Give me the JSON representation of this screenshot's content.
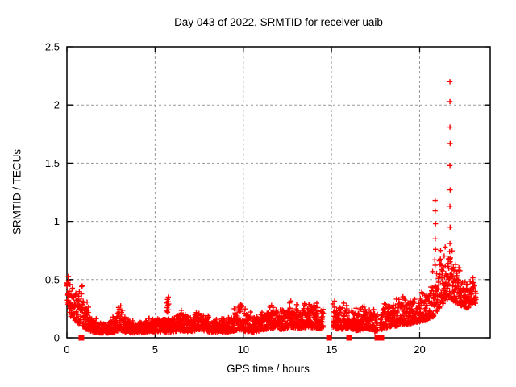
{
  "title": "Day 043 of 2022, SRMTID for receiver uaib",
  "axes": {
    "xlabel": "GPS time / hours",
    "ylabel": "SRMTID / TECUs"
  },
  "colors": {
    "marker": "#ff0000",
    "axis": "#000000",
    "grid": "#9a9a9a",
    "background": "#ffffff"
  },
  "chart_data": {
    "type": "scatter",
    "title": "Day 043 of 2022, SRMTID for receiver uaib",
    "xlabel": "GPS time / hours",
    "ylabel": "SRMTID / TECUs",
    "xlim": [
      0,
      24
    ],
    "ylim": [
      0,
      2.5
    ],
    "xticks": [
      0,
      5,
      10,
      15,
      20
    ],
    "yticks": [
      0,
      0.5,
      1,
      1.5,
      2,
      2.5
    ],
    "grid": true,
    "legend": "none",
    "marker": "+",
    "marker_color": "#ff0000",
    "series_name": "SRMTID",
    "points_per_hour": 110,
    "band_envelope": [
      [
        0.0,
        0.26,
        0.57
      ],
      [
        0.2,
        0.18,
        0.46
      ],
      [
        0.5,
        0.13,
        0.38
      ],
      [
        0.75,
        0.12,
        0.45
      ],
      [
        1.0,
        0.08,
        0.3
      ],
      [
        1.3,
        0.06,
        0.2
      ],
      [
        1.7,
        0.04,
        0.13
      ],
      [
        2.3,
        0.04,
        0.12
      ],
      [
        2.8,
        0.05,
        0.17
      ],
      [
        3.0,
        0.07,
        0.32
      ],
      [
        3.2,
        0.05,
        0.18
      ],
      [
        3.6,
        0.04,
        0.13
      ],
      [
        4.2,
        0.04,
        0.12
      ],
      [
        4.8,
        0.05,
        0.15
      ],
      [
        5.3,
        0.05,
        0.16
      ],
      [
        5.9,
        0.05,
        0.16
      ],
      [
        6.5,
        0.06,
        0.21
      ],
      [
        7.0,
        0.05,
        0.16
      ],
      [
        7.5,
        0.07,
        0.23
      ],
      [
        8.0,
        0.05,
        0.16
      ],
      [
        8.7,
        0.04,
        0.14
      ],
      [
        9.3,
        0.05,
        0.18
      ],
      [
        9.85,
        0.07,
        0.3
      ],
      [
        10.2,
        0.05,
        0.2
      ],
      [
        10.7,
        0.05,
        0.16
      ],
      [
        11.2,
        0.07,
        0.21
      ],
      [
        11.7,
        0.08,
        0.24
      ],
      [
        12.2,
        0.07,
        0.21
      ],
      [
        12.7,
        0.09,
        0.27
      ],
      [
        13.2,
        0.08,
        0.24
      ],
      [
        13.7,
        0.09,
        0.27
      ],
      [
        14.2,
        0.08,
        0.27
      ],
      [
        14.55,
        0.08,
        0.22
      ],
      [
        15.08,
        0.08,
        0.3
      ],
      [
        15.5,
        0.07,
        0.26
      ],
      [
        16.0,
        0.08,
        0.25
      ],
      [
        16.5,
        0.06,
        0.22
      ],
      [
        17.0,
        0.08,
        0.24
      ],
      [
        17.5,
        0.05,
        0.2
      ],
      [
        18.0,
        0.08,
        0.26
      ],
      [
        18.5,
        0.1,
        0.28
      ],
      [
        19.0,
        0.1,
        0.3
      ],
      [
        19.5,
        0.12,
        0.32
      ],
      [
        20.0,
        0.14,
        0.34
      ],
      [
        20.4,
        0.15,
        0.38
      ],
      [
        20.8,
        0.18,
        0.5
      ],
      [
        21.1,
        0.25,
        0.62
      ],
      [
        21.4,
        0.3,
        0.74
      ],
      [
        21.7,
        0.35,
        0.7
      ],
      [
        22.0,
        0.3,
        0.62
      ],
      [
        22.3,
        0.28,
        0.52
      ],
      [
        22.7,
        0.25,
        0.5
      ],
      [
        23.0,
        0.28,
        0.48
      ],
      [
        23.2,
        0.3,
        0.45
      ]
    ],
    "gaps": [
      [
        14.55,
        15.08
      ],
      [
        16.02,
        16.1
      ],
      [
        17.62,
        17.74
      ]
    ],
    "outliers": [
      [
        5.65,
        0.3
      ],
      [
        5.68,
        0.26
      ],
      [
        5.7,
        0.33
      ],
      [
        5.72,
        0.28
      ],
      [
        5.74,
        0.31
      ],
      [
        5.76,
        0.24
      ],
      [
        5.78,
        0.29
      ],
      [
        5.71,
        0.22
      ],
      [
        5.75,
        0.35
      ],
      [
        5.67,
        0.23
      ],
      [
        20.88,
        1.18
      ],
      [
        20.88,
        1.09
      ],
      [
        20.9,
        0.98
      ],
      [
        20.88,
        0.85
      ],
      [
        20.9,
        0.76
      ],
      [
        20.86,
        0.67
      ],
      [
        21.45,
        0.78
      ],
      [
        21.72,
        2.2
      ],
      [
        21.72,
        2.03
      ],
      [
        21.72,
        1.81
      ],
      [
        21.73,
        1.67
      ],
      [
        21.72,
        1.48
      ],
      [
        21.73,
        1.27
      ],
      [
        21.72,
        1.13
      ],
      [
        21.73,
        0.95
      ],
      [
        21.72,
        0.81
      ],
      [
        21.7,
        0.74
      ]
    ],
    "zero_markers": [
      0.82,
      14.86,
      16.0,
      17.6,
      17.83
    ]
  }
}
